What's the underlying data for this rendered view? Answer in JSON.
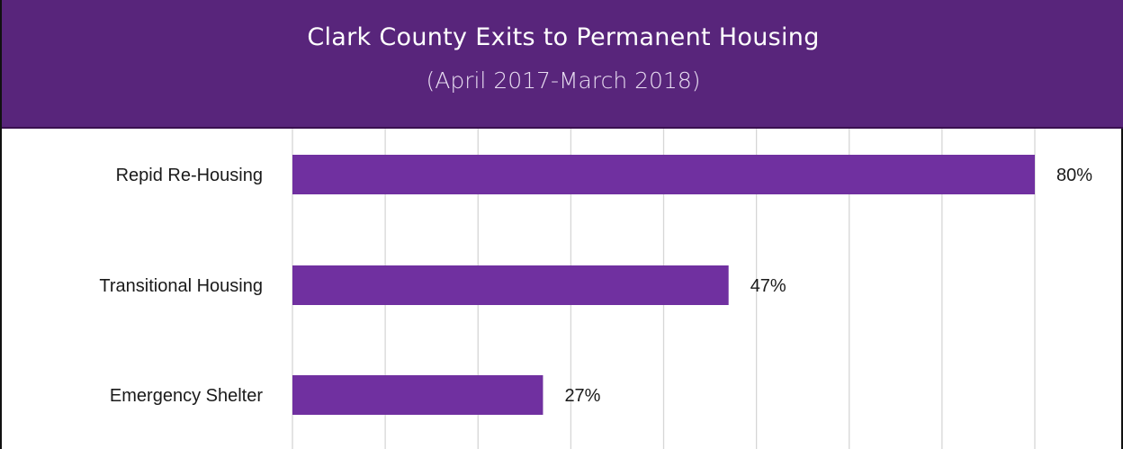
{
  "colors": {
    "banner": "#58257b",
    "bar": "#7030a0"
  },
  "chart_data": {
    "type": "bar",
    "orientation": "horizontal",
    "title": "Clark County Exits to Permanent Housing",
    "subtitle": "(April 2017-March 2018)",
    "categories": [
      "Repid Re-Housing",
      "Transitional Housing",
      "Emergency Shelter"
    ],
    "values": [
      80,
      47,
      27
    ],
    "value_labels": [
      "80%",
      "47%",
      "27%"
    ],
    "xlim": [
      0,
      90
    ],
    "grid": true,
    "legend": "none"
  }
}
